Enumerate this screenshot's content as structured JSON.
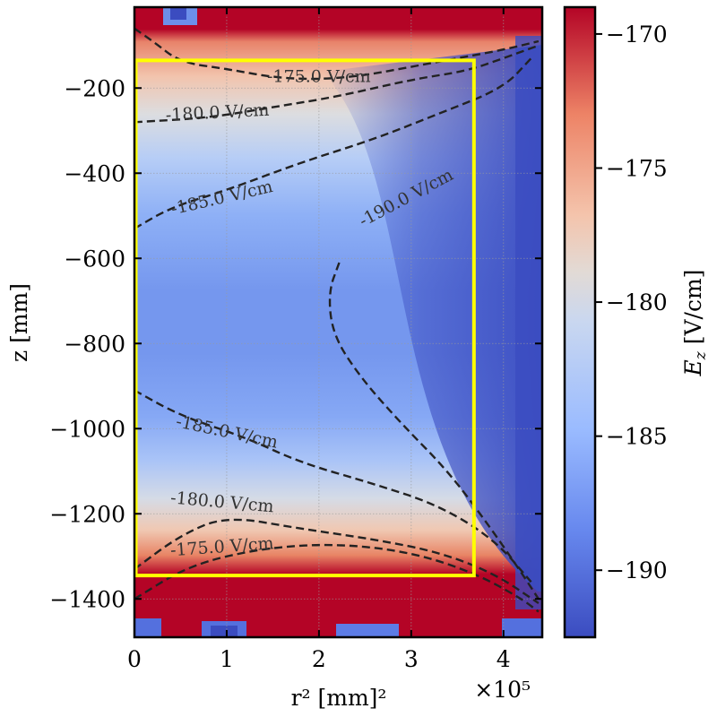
{
  "chart_data": {
    "type": "heatmap",
    "title": "",
    "xlabel": "r² [mm]²",
    "x_offset_text": "×10⁵",
    "ylabel": "z [mm]",
    "colorbar_label": "E_z [V/cm]",
    "xlim": [
      0,
      4.42
    ],
    "ylim": [
      -1490,
      -10
    ],
    "x_ticks": [
      {
        "value": 0,
        "label": "0"
      },
      {
        "value": 1,
        "label": "1"
      },
      {
        "value": 2,
        "label": "2"
      },
      {
        "value": 3,
        "label": "3"
      },
      {
        "value": 4,
        "label": "4"
      }
    ],
    "y_ticks": [
      {
        "value": -200,
        "label": "−200"
      },
      {
        "value": -400,
        "label": "−400"
      },
      {
        "value": -600,
        "label": "−600"
      },
      {
        "value": -800,
        "label": "−800"
      },
      {
        "value": -1000,
        "label": "−1000"
      },
      {
        "value": -1200,
        "label": "−1200"
      },
      {
        "value": -1400,
        "label": "−1400"
      }
    ],
    "colorbar_range": [
      -192.5,
      -169
    ],
    "colorbar_ticks": [
      {
        "value": -170,
        "label": "−170"
      },
      {
        "value": -175,
        "label": "−175"
      },
      {
        "value": -180,
        "label": "−180"
      },
      {
        "value": -185,
        "label": "−185"
      },
      {
        "value": -190,
        "label": "−190"
      }
    ],
    "colormap": [
      "#3b4cc0",
      "#7b9ff9",
      "#c0d4f5",
      "#dddcdc",
      "#f2cbb7",
      "#ee8468",
      "#b40426"
    ],
    "grid": true,
    "highlight_box": {
      "x": [
        0,
        3.68
      ],
      "z": [
        -1345,
        -135
      ],
      "color": "#ffff00"
    },
    "contours": [
      {
        "level": -175,
        "label": "-175.0 V/cm",
        "points": [
          [
            0,
            -60
          ],
          [
            0.2,
            -90
          ],
          [
            0.5,
            -140
          ],
          [
            1.0,
            -155
          ],
          [
            1.5,
            -175
          ],
          [
            2.0,
            -180
          ],
          [
            2.5,
            -170
          ],
          [
            3.0,
            -150
          ],
          [
            3.5,
            -130
          ],
          [
            4.0,
            -110
          ],
          [
            4.38,
            -90
          ]
        ]
      },
      {
        "level": -180,
        "label": "-180.0 V/cm",
        "points": [
          [
            0,
            -280
          ],
          [
            0.8,
            -270
          ],
          [
            1.5,
            -245
          ],
          [
            2.2,
            -220
          ],
          [
            3.0,
            -180
          ],
          [
            3.6,
            -160
          ],
          [
            4.0,
            -130
          ],
          [
            4.38,
            -100
          ]
        ]
      },
      {
        "level": -185,
        "label": "-185.0 V/cm",
        "points": [
          [
            0,
            -530
          ],
          [
            0.4,
            -480
          ],
          [
            1.0,
            -440
          ],
          [
            1.8,
            -375
          ],
          [
            2.6,
            -320
          ],
          [
            3.3,
            -260
          ],
          [
            4.0,
            -200
          ],
          [
            4.3,
            -130
          ]
        ]
      },
      {
        "level": -190,
        "label": "-190.0 V/cm",
        "points": [
          [
            2.22,
            -610
          ],
          [
            2.1,
            -680
          ],
          [
            2.15,
            -780
          ],
          [
            2.45,
            -880
          ],
          [
            2.9,
            -990
          ],
          [
            3.4,
            -1100
          ],
          [
            3.85,
            -1230
          ],
          [
            4.2,
            -1340
          ],
          [
            4.38,
            -1400
          ]
        ]
      },
      {
        "level": -185,
        "label": "-185.0 V/cm",
        "points": [
          [
            0,
            -910
          ],
          [
            0.5,
            -970
          ],
          [
            1.2,
            -1020
          ],
          [
            1.8,
            -1080
          ],
          [
            2.6,
            -1130
          ],
          [
            3.3,
            -1180
          ],
          [
            3.9,
            -1260
          ],
          [
            4.3,
            -1360
          ]
        ]
      },
      {
        "level": -180,
        "label": "-180.0 V/cm",
        "points": [
          [
            0,
            -1330
          ],
          [
            0.5,
            -1250
          ],
          [
            1.0,
            -1205
          ],
          [
            1.8,
            -1235
          ],
          [
            2.6,
            -1260
          ],
          [
            3.3,
            -1290
          ],
          [
            3.9,
            -1340
          ],
          [
            4.38,
            -1410
          ]
        ]
      },
      {
        "level": -175,
        "label": "-175.0 V/cm",
        "points": [
          [
            0,
            -1400
          ],
          [
            0.6,
            -1320
          ],
          [
            1.4,
            -1280
          ],
          [
            2.2,
            -1270
          ],
          [
            3.0,
            -1290
          ],
          [
            3.7,
            -1340
          ],
          [
            4.2,
            -1400
          ],
          [
            4.38,
            -1430
          ]
        ]
      }
    ],
    "contour_labels": [
      {
        "text": "-175.0 V/cm",
        "x": 2.0,
        "z": -175,
        "angle": 0
      },
      {
        "text": "-180.0 V/cm",
        "x": 0.9,
        "z": -260,
        "angle": -3
      },
      {
        "text": "-185.0 V/cm",
        "x": 0.95,
        "z": -460,
        "angle": -13
      },
      {
        "text": "-190.0 V/cm",
        "x": 2.95,
        "z": -460,
        "angle": -28
      },
      {
        "text": "-185.0 V/cm",
        "x": 1.0,
        "z": -1010,
        "angle": 12
      },
      {
        "text": "-180.0 V/cm",
        "x": 0.95,
        "z": -1175,
        "angle": 5
      },
      {
        "text": "-175.0 V/cm",
        "x": 0.95,
        "z": -1280,
        "angle": -4
      }
    ]
  }
}
